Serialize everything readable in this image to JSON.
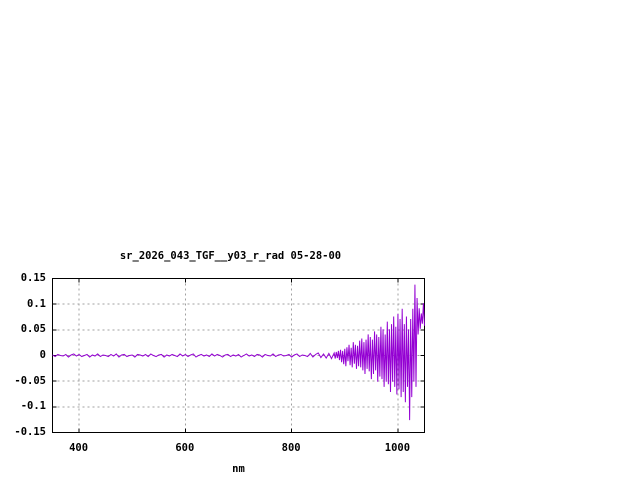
{
  "canvas": {
    "background": "#ffffff",
    "text_color": "#000000"
  },
  "chart": {
    "grid_color": "#a0a0a0",
    "axis_color": "#000000",
    "tick_len": 4
  },
  "chart_data": {
    "type": "line",
    "title": "sr_2026_043_TGF__y03_r_rad 05-28-00",
    "xlabel": "nm",
    "ylabel": "",
    "xlim": [
      350,
      1050
    ],
    "ylim": [
      -0.15,
      0.15
    ],
    "grid": true,
    "legend": false,
    "x_ticks": [
      {
        "value": 400,
        "label": "400"
      },
      {
        "value": 600,
        "label": "600"
      },
      {
        "value": 800,
        "label": "800"
      },
      {
        "value": 1000,
        "label": "1000"
      }
    ],
    "y_ticks": [
      {
        "value": 0.15,
        "label": "0.15"
      },
      {
        "value": 0.1,
        "label": "0.1"
      },
      {
        "value": 0.05,
        "label": "0.05"
      },
      {
        "value": 0,
        "label": "0"
      },
      {
        "value": -0.05,
        "label": "-0.05"
      },
      {
        "value": -0.1,
        "label": "-0.1"
      },
      {
        "value": -0.15,
        "label": "-0.15"
      }
    ],
    "series": [
      {
        "name": "sr_2026_043_TGF__y03_r_rad",
        "color": "#9400d3",
        "x": [
          350,
          355,
          360,
          365,
          370,
          375,
          380,
          385,
          390,
          395,
          400,
          405,
          410,
          415,
          420,
          425,
          430,
          435,
          440,
          445,
          450,
          455,
          460,
          465,
          470,
          475,
          480,
          485,
          490,
          495,
          500,
          505,
          510,
          515,
          520,
          525,
          530,
          535,
          540,
          545,
          550,
          555,
          560,
          565,
          570,
          575,
          580,
          585,
          590,
          595,
          600,
          605,
          610,
          615,
          620,
          625,
          630,
          635,
          640,
          645,
          650,
          655,
          660,
          665,
          670,
          675,
          680,
          685,
          690,
          695,
          700,
          705,
          710,
          715,
          720,
          725,
          730,
          735,
          740,
          745,
          750,
          755,
          760,
          765,
          770,
          775,
          780,
          785,
          790,
          795,
          800,
          805,
          810,
          815,
          820,
          825,
          830,
          835,
          840,
          845,
          850,
          855,
          860,
          865,
          870,
          875,
          880,
          882,
          884,
          886,
          888,
          890,
          892,
          894,
          896,
          898,
          900,
          902,
          904,
          906,
          908,
          910,
          912,
          914,
          916,
          918,
          920,
          922,
          924,
          926,
          928,
          930,
          932,
          934,
          936,
          938,
          940,
          942,
          944,
          946,
          948,
          950,
          952,
          954,
          956,
          958,
          960,
          962,
          964,
          966,
          968,
          970,
          972,
          974,
          976,
          978,
          980,
          982,
          984,
          986,
          988,
          990,
          992,
          994,
          996,
          998,
          1000,
          1002,
          1004,
          1006,
          1008,
          1010,
          1012,
          1014,
          1016,
          1018,
          1020,
          1022,
          1024,
          1026,
          1028,
          1030,
          1032,
          1034,
          1036,
          1038,
          1040,
          1042,
          1044,
          1046,
          1048,
          1050
        ],
        "y": [
          0.001,
          -0.002,
          0.002,
          0.0,
          -0.001,
          0.002,
          -0.003,
          0.001,
          0.003,
          -0.001,
          0.002,
          -0.002,
          0.0,
          0.002,
          -0.003,
          0.001,
          -0.001,
          0.003,
          -0.002,
          0.001,
          0.0,
          -0.002,
          0.002,
          -0.001,
          0.003,
          -0.003,
          0.001,
          0.002,
          -0.002,
          0.0,
          0.001,
          -0.003,
          0.002,
          0.001,
          -0.001,
          0.002,
          -0.002,
          0.003,
          0.0,
          -0.002,
          0.001,
          0.002,
          -0.003,
          0.001,
          -0.001,
          0.002,
          0.0,
          -0.002,
          0.003,
          -0.001,
          0.002,
          -0.002,
          0.001,
          0.003,
          -0.003,
          0.0,
          0.002,
          -0.001,
          0.001,
          -0.002,
          0.003,
          -0.001,
          0.002,
          0.0,
          -0.003,
          0.001,
          0.002,
          -0.002,
          0.001,
          -0.001,
          0.002,
          -0.003,
          0.0,
          0.003,
          -0.001,
          0.001,
          -0.002,
          0.002,
          0.001,
          -0.003,
          0.002,
          0.0,
          -0.001,
          0.003,
          -0.002,
          0.001,
          0.002,
          -0.001,
          0.0,
          0.002,
          -0.003,
          0.001,
          0.003,
          -0.002,
          0.001,
          0.0,
          -0.002,
          0.004,
          -0.003,
          0.002,
          0.005,
          -0.004,
          0.003,
          -0.005,
          0.004,
          -0.006,
          0.005,
          -0.006,
          0.007,
          -0.005,
          0.009,
          -0.009,
          0.011,
          -0.013,
          0.009,
          -0.017,
          0.013,
          -0.021,
          0.016,
          -0.011,
          0.021,
          -0.019,
          0.015,
          -0.023,
          0.026,
          -0.016,
          0.021,
          -0.026,
          0.019,
          -0.021,
          0.029,
          -0.023,
          0.033,
          -0.029,
          0.026,
          -0.036,
          0.031,
          -0.026,
          0.041,
          -0.031,
          0.036,
          -0.046,
          0.031,
          -0.036,
          0.047,
          -0.029,
          0.041,
          -0.051,
          0.036,
          -0.041,
          0.056,
          -0.046,
          0.051,
          -0.061,
          0.041,
          -0.051,
          0.066,
          -0.056,
          0.051,
          -0.071,
          0.061,
          -0.051,
          0.076,
          -0.061,
          0.056,
          -0.076,
          0.081,
          -0.066,
          0.071,
          -0.081,
          0.091,
          -0.071,
          0.061,
          -0.091,
          0.076,
          -0.061,
          0.051,
          -0.126,
          0.071,
          -0.081,
          0.091,
          -0.051,
          0.138,
          -0.061,
          0.112,
          0.041,
          0.092,
          0.052,
          0.082,
          0.062,
          0.102,
          0.058
        ]
      }
    ]
  }
}
